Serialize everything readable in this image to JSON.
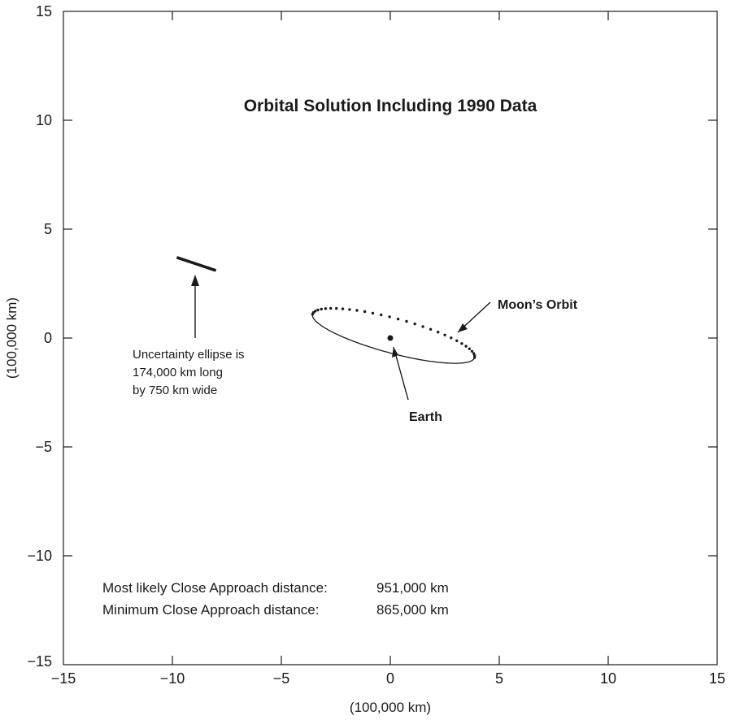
{
  "chart_data": {
    "type": "scatter",
    "title": "Orbital Solution Including 1990 Data",
    "xlabel": "(100,000 km)",
    "ylabel": "(100,000 km)",
    "xlim": [
      -15,
      15
    ],
    "ylim": [
      -15,
      15
    ],
    "x_ticks": [
      "−15",
      "−10",
      "−5",
      "0",
      "5",
      "10",
      "15"
    ],
    "y_ticks": [
      "15",
      "10",
      "5",
      "0",
      "−5",
      "−10",
      "−15"
    ],
    "grid": false,
    "earth": {
      "label": "Earth",
      "x": 0,
      "y": 0
    },
    "moon_orbit": {
      "label": "Moon’s Orbit",
      "center": [
        0.15,
        0.1
      ],
      "semi_major": 3.85,
      "semi_minor": 0.8,
      "tilt_deg": -15
    },
    "uncertainty_ellipse": {
      "segment": [
        [
          -9.8,
          3.7
        ],
        [
          -8.0,
          3.1
        ]
      ],
      "annotation_lines": [
        "Uncertainty ellipse is",
        "174,000 km long",
        "by 750 km wide"
      ]
    },
    "close_approach": {
      "most_likely_label": "Most likely Close Approach distance:",
      "most_likely_value": "951,000 km",
      "minimum_label": "Minimum Close Approach distance:",
      "minimum_value": "865,000 km"
    }
  }
}
